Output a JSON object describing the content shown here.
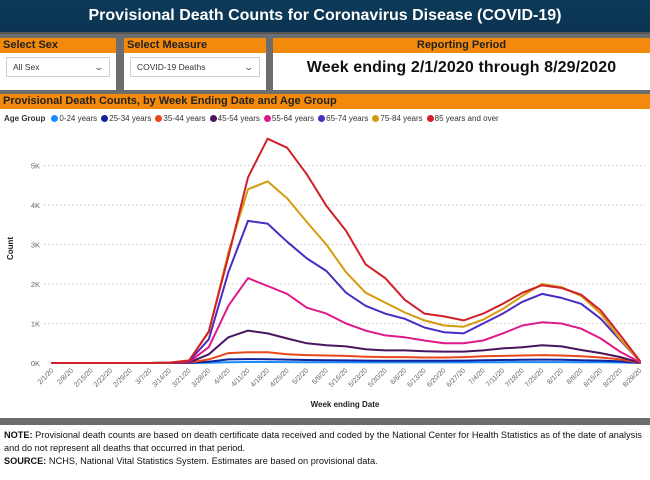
{
  "header": {
    "title": "Provisional Death Counts for Coronavirus Disease (COVID-19)"
  },
  "filters": {
    "sex": {
      "label": "Select Sex",
      "value": "All Sex"
    },
    "measure": {
      "label": "Select Measure",
      "value": "COVID-19 Deaths"
    },
    "period": {
      "label": "Reporting Period",
      "value": "Week ending 2/1/2020 through 8/29/2020"
    }
  },
  "icons": {
    "dropdown": "chevron-down-icon",
    "legend_marker": "circle-icon"
  },
  "footer": {
    "note_label": "NOTE:",
    "note_text": " Provisional death counts are based on death certificate data received and coded by the National Center for Health Statistics as of the date of analysis and do not represent all deaths that occurred in that period.",
    "source_label": "SOURCE:",
    "source_text": " NCHS, National Vital Statistics System. Estimates are based on provisional data."
  },
  "chart_data": {
    "type": "line",
    "title": "Provisional Death Counts, by Week Ending Date and Age Group",
    "legend_title": "Age Group",
    "legend_position": "top-left",
    "xlabel": "Week ending Date",
    "ylabel": "Count",
    "ylim": [
      0,
      5800
    ],
    "yticks": [
      0,
      1000,
      2000,
      3000,
      4000,
      5000
    ],
    "ytick_labels": [
      "0K",
      "1K",
      "2K",
      "3K",
      "4K",
      "5K"
    ],
    "grid": "horizontal dotted",
    "x": [
      "2/1/20",
      "2/8/20",
      "2/15/20",
      "2/22/20",
      "2/29/20",
      "3/7/20",
      "3/14/20",
      "3/21/20",
      "3/28/20",
      "4/4/20",
      "4/11/20",
      "4/18/20",
      "4/25/20",
      "5/2/20",
      "5/9/20",
      "5/16/20",
      "5/23/20",
      "5/30/20",
      "6/6/20",
      "6/13/20",
      "6/20/20",
      "6/27/20",
      "7/4/20",
      "7/11/20",
      "7/18/20",
      "7/25/20",
      "8/1/20",
      "8/8/20",
      "8/15/20",
      "8/22/20",
      "8/29/20"
    ],
    "series": [
      {
        "name": "0-24 years",
        "color": "#1a8cff",
        "values": [
          0,
          0,
          0,
          0,
          0,
          0,
          0,
          1,
          8,
          20,
          25,
          25,
          22,
          20,
          18,
          17,
          15,
          15,
          15,
          15,
          15,
          16,
          18,
          20,
          22,
          23,
          22,
          20,
          17,
          12,
          1
        ]
      },
      {
        "name": "25-34 years",
        "color": "#12239e",
        "values": [
          0,
          0,
          0,
          0,
          0,
          0,
          0,
          3,
          30,
          90,
          100,
          95,
          85,
          75,
          70,
          65,
          60,
          55,
          55,
          55,
          55,
          60,
          70,
          75,
          80,
          85,
          80,
          70,
          60,
          40,
          3
        ]
      },
      {
        "name": "35-44 years",
        "color": "#e8471a",
        "values": [
          0,
          0,
          0,
          0,
          0,
          0,
          1,
          8,
          90,
          250,
          270,
          270,
          220,
          200,
          190,
          180,
          160,
          150,
          150,
          140,
          140,
          150,
          170,
          180,
          190,
          200,
          190,
          170,
          140,
          90,
          5
        ]
      },
      {
        "name": "45-54 years",
        "color": "#4a1560",
        "values": [
          0,
          0,
          0,
          0,
          0,
          0,
          2,
          15,
          220,
          650,
          820,
          750,
          620,
          500,
          450,
          420,
          350,
          320,
          320,
          300,
          290,
          290,
          320,
          370,
          400,
          450,
          420,
          330,
          250,
          150,
          10
        ]
      },
      {
        "name": "55-64 years",
        "color": "#e0198a",
        "values": [
          0,
          0,
          0,
          0,
          0,
          0,
          5,
          30,
          400,
          1450,
          2150,
          1950,
          1750,
          1400,
          1250,
          1000,
          820,
          700,
          650,
          570,
          500,
          500,
          570,
          750,
          950,
          1030,
          1000,
          870,
          620,
          280,
          20
        ]
      },
      {
        "name": "65-74 years",
        "color": "#4b2bc4",
        "values": [
          0,
          0,
          0,
          0,
          0,
          0,
          8,
          50,
          600,
          2300,
          3600,
          3530,
          3070,
          2650,
          2330,
          1780,
          1450,
          1250,
          1120,
          900,
          780,
          750,
          1000,
          1250,
          1550,
          1750,
          1650,
          1500,
          1120,
          570,
          40
        ]
      },
      {
        "name": "75-84 years",
        "color": "#d49b0c",
        "values": [
          0,
          0,
          0,
          0,
          0,
          0,
          10,
          70,
          780,
          2800,
          4400,
          4600,
          4170,
          3570,
          3000,
          2300,
          1780,
          1530,
          1280,
          1080,
          950,
          920,
          1100,
          1370,
          1700,
          2000,
          1920,
          1700,
          1250,
          600,
          40
        ]
      },
      {
        "name": "85 years and over",
        "color": "#d0202a",
        "values": [
          0,
          0,
          0,
          0,
          0,
          0,
          10,
          60,
          800,
          2700,
          4700,
          5680,
          5450,
          4780,
          3980,
          3350,
          2500,
          2150,
          1600,
          1250,
          1180,
          1080,
          1250,
          1500,
          1780,
          1970,
          1900,
          1730,
          1330,
          700,
          50
        ]
      }
    ]
  }
}
